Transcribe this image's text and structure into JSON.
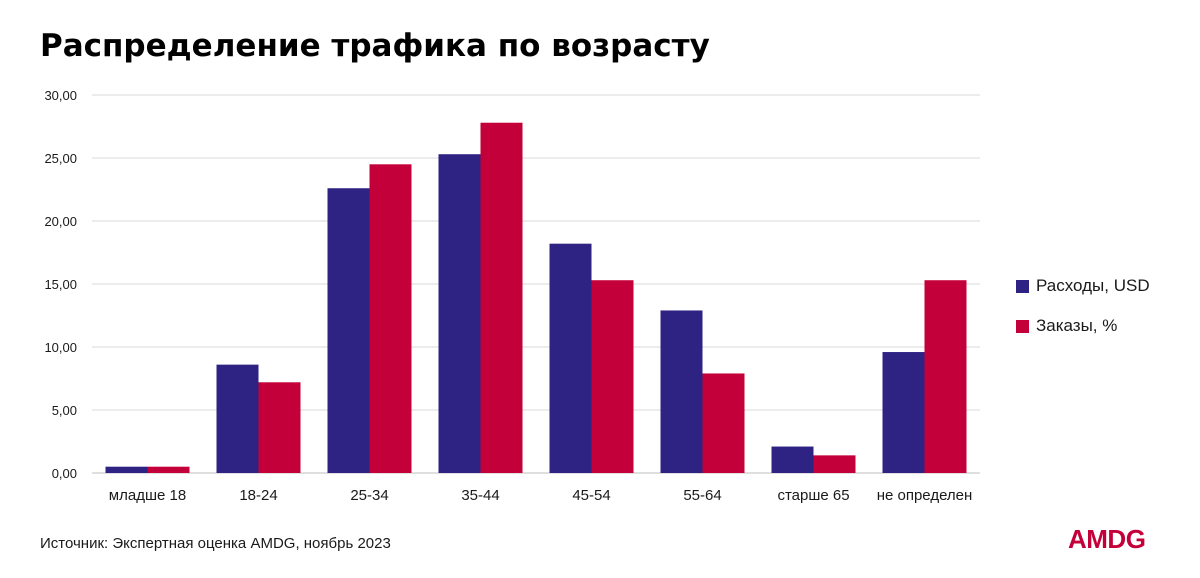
{
  "title": "Распределение трафика по возрасту",
  "source": "Источник: Экспертная оценка AMDG, ноябрь 2023",
  "logo": "AMDG",
  "colors": {
    "series1": "#2e2382",
    "series2": "#c4003a",
    "brand": "#c4003a",
    "grid": "#d9d9d9",
    "axis": "#bfbfbf"
  },
  "chart_data": {
    "type": "bar",
    "title": "Распределение трафика по возрасту",
    "categories": [
      "младше 18",
      "18-24",
      "25-34",
      "35-44",
      "45-54",
      "55-64",
      "старше 65",
      "не определен"
    ],
    "series": [
      {
        "name": "Расходы, USD",
        "values": [
          0.5,
          8.6,
          22.6,
          25.3,
          18.2,
          12.9,
          2.1,
          9.6
        ]
      },
      {
        "name": "Заказы, %",
        "values": [
          0.5,
          7.2,
          24.5,
          27.8,
          15.3,
          7.9,
          1.4,
          15.3
        ]
      }
    ],
    "ylim": [
      0,
      30
    ],
    "yticks": [
      "0,00",
      "5,00",
      "10,00",
      "15,00",
      "20,00",
      "25,00",
      "30,00"
    ],
    "grid": true,
    "legend_position": "right"
  }
}
